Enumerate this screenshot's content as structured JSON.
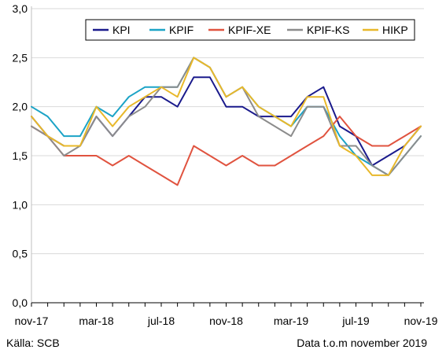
{
  "chart_data": {
    "type": "line",
    "x": [
      "nov-17",
      "dec-17",
      "jan-18",
      "feb-18",
      "mar-18",
      "apr-18",
      "maj-18",
      "jun-18",
      "jul-18",
      "aug-18",
      "sep-18",
      "okt-18",
      "nov-18",
      "dec-18",
      "jan-19",
      "feb-19",
      "mar-19",
      "apr-19",
      "maj-19",
      "jun-19",
      "jul-19",
      "aug-19",
      "sep-19",
      "okt-19",
      "nov-19"
    ],
    "x_tick_labels": [
      {
        "index": 0,
        "label": "nov-17"
      },
      {
        "index": 4,
        "label": "mar-18"
      },
      {
        "index": 8,
        "label": "jul-18"
      },
      {
        "index": 12,
        "label": "nov-18"
      },
      {
        "index": 16,
        "label": "mar-19"
      },
      {
        "index": 20,
        "label": "jul-19"
      },
      {
        "index": 24,
        "label": "nov-19"
      }
    ],
    "ylim": [
      0,
      3
    ],
    "y_ticks": [
      "0,0",
      "0,5",
      "1,0",
      "1,5",
      "2,0",
      "2,5",
      "3,0"
    ],
    "grid": "horizontal",
    "legend_position": "top-right",
    "series": [
      {
        "name": "KPI",
        "color": "#1a1a8c",
        "values": [
          1.9,
          1.7,
          1.6,
          1.6,
          1.9,
          1.7,
          1.9,
          2.1,
          2.1,
          2.0,
          2.3,
          2.3,
          2.0,
          2.0,
          1.9,
          1.9,
          1.9,
          2.1,
          2.2,
          1.8,
          1.7,
          1.4,
          1.5,
          1.6,
          1.8
        ]
      },
      {
        "name": "KPIF",
        "color": "#1ba3c6",
        "values": [
          2.0,
          1.9,
          1.7,
          1.7,
          2.0,
          1.9,
          2.1,
          2.2,
          2.2,
          2.2,
          2.5,
          2.4,
          2.1,
          2.2,
          2.0,
          1.9,
          1.8,
          2.0,
          2.0,
          1.7,
          1.5,
          1.4,
          1.3,
          1.5,
          1.7
        ]
      },
      {
        "name": "KPIF-XE",
        "color": "#e0533f",
        "values": [
          1.8,
          1.7,
          1.5,
          1.5,
          1.5,
          1.4,
          1.5,
          1.4,
          1.3,
          1.2,
          1.6,
          1.5,
          1.4,
          1.5,
          1.4,
          1.4,
          1.5,
          1.6,
          1.7,
          1.9,
          1.7,
          1.6,
          1.6,
          1.7,
          1.8
        ]
      },
      {
        "name": "KPIF-KS",
        "color": "#8c8c8c",
        "values": [
          1.8,
          1.7,
          1.5,
          1.6,
          1.9,
          1.7,
          1.9,
          2.0,
          2.2,
          2.2,
          2.5,
          2.4,
          2.1,
          2.2,
          1.9,
          1.8,
          1.7,
          2.0,
          2.0,
          1.6,
          1.6,
          1.4,
          1.3,
          1.5,
          1.7
        ]
      },
      {
        "name": "HIKP",
        "color": "#e8b82a",
        "values": [
          1.9,
          1.7,
          1.6,
          1.6,
          2.0,
          1.8,
          2.0,
          2.1,
          2.2,
          2.1,
          2.5,
          2.4,
          2.1,
          2.2,
          2.0,
          1.9,
          1.8,
          2.1,
          2.1,
          1.6,
          1.5,
          1.3,
          1.3,
          1.6,
          1.8
        ]
      }
    ]
  },
  "footer": {
    "source": "Källa: SCB",
    "data_until": "Data t.o.m november 2019"
  }
}
